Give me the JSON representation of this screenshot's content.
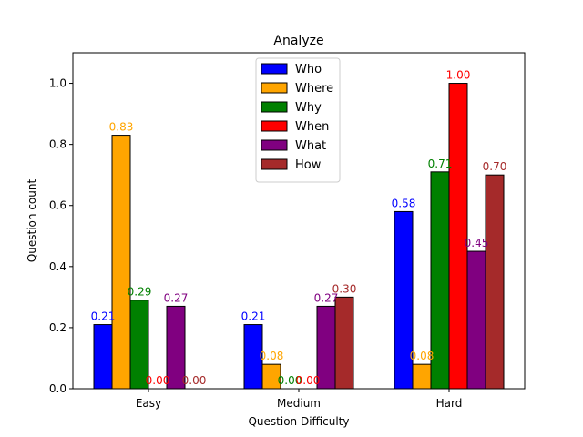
{
  "chart_data": {
    "type": "bar",
    "title": "Analyze",
    "xlabel": "Question Difficulty",
    "ylabel": "Question count",
    "ylim": [
      0,
      1.1
    ],
    "yticks": [
      0.0,
      0.2,
      0.4,
      0.6,
      0.8,
      1.0
    ],
    "ytick_labels": [
      "0.0",
      "0.2",
      "0.4",
      "0.6",
      "0.8",
      "1.0"
    ],
    "categories": [
      "Easy",
      "Medium",
      "Hard"
    ],
    "legend_position": "top-center",
    "grid": false,
    "series": [
      {
        "name": "Who",
        "color": "#0000ff",
        "values": [
          0.21,
          0.21,
          0.58
        ],
        "labels": [
          "0.21",
          "0.21",
          "0.58"
        ]
      },
      {
        "name": "Where",
        "color": "#ffa500",
        "values": [
          0.83,
          0.08,
          0.08
        ],
        "labels": [
          "0.83",
          "0.08",
          "0.08"
        ]
      },
      {
        "name": "Why",
        "color": "#008000",
        "values": [
          0.29,
          0.0,
          0.71
        ],
        "labels": [
          "0.29",
          "0.00",
          "0.71"
        ]
      },
      {
        "name": "When",
        "color": "#ff0000",
        "values": [
          0.0,
          0.0,
          1.0
        ],
        "labels": [
          "0.00",
          "0.00",
          "1.00"
        ]
      },
      {
        "name": "What",
        "color": "#800080",
        "values": [
          0.27,
          0.27,
          0.45
        ],
        "labels": [
          "0.27",
          "0.27",
          "0.45"
        ]
      },
      {
        "name": "How",
        "color": "#a52a2a",
        "values": [
          0.0,
          0.3,
          0.7
        ],
        "labels": [
          "0.00",
          "0.30",
          "0.70"
        ]
      }
    ]
  }
}
